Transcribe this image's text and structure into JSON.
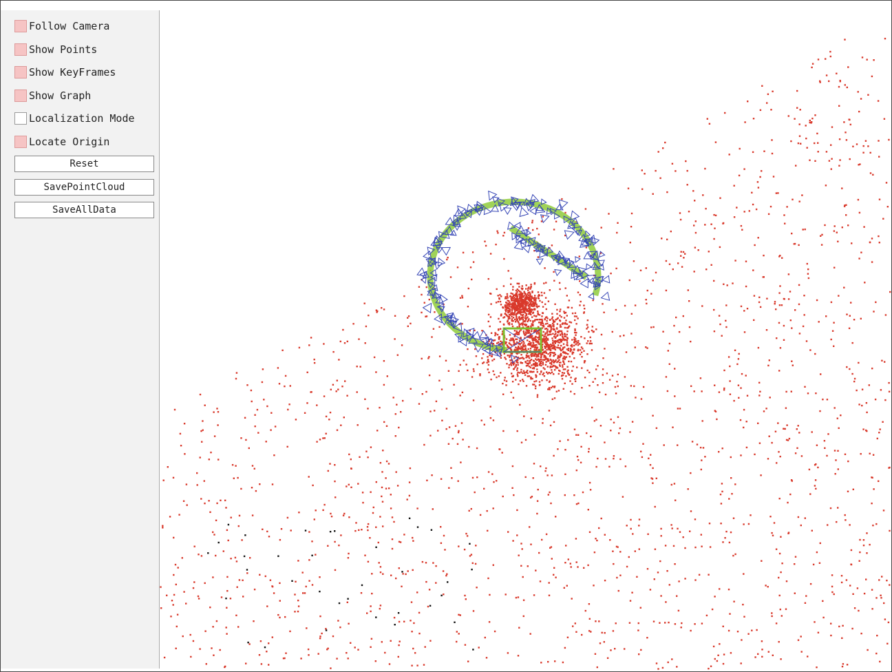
{
  "panel": {
    "checkboxes": [
      {
        "label": "Follow Camera",
        "checked": true
      },
      {
        "label": "Show Points",
        "checked": true
      },
      {
        "label": "Show KeyFrames",
        "checked": true
      },
      {
        "label": "Show Graph",
        "checked": true
      },
      {
        "label": "Localization Mode",
        "checked": false
      },
      {
        "label": "Locate Origin",
        "checked": true
      }
    ],
    "buttons": [
      "Reset",
      "SavePointCloud",
      "SaveAllData"
    ]
  }
}
